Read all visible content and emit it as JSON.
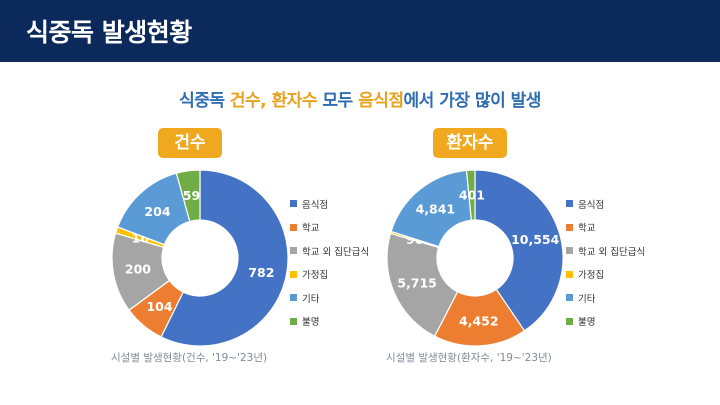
{
  "header": {
    "title": "식중독 발생현황"
  },
  "subtitle": {
    "p1": "식중독 ",
    "h1": "건수, 환자수",
    "p2": " 모두 ",
    "h2": "음식점",
    "p3": "에서 가장 많이 발생"
  },
  "legend": [
    {
      "label": "음식점",
      "color": "#4472c4"
    },
    {
      "label": "학교",
      "color": "#ed7d31"
    },
    {
      "label": "학교 외 집단급식",
      "color": "#a5a5a5"
    },
    {
      "label": "가정집",
      "color": "#ffc000"
    },
    {
      "label": "기타",
      "color": "#5b9bd5"
    },
    {
      "label": "불명",
      "color": "#70ad47"
    }
  ],
  "chart_data": [
    {
      "type": "pie",
      "title": "건수",
      "caption": "시설별 발생현황(건수, '19~'23년)",
      "categories": [
        "음식점",
        "학교",
        "학교 외 집단급식",
        "가정집",
        "기타",
        "불명"
      ],
      "values": [
        782,
        104,
        200,
        16,
        204,
        59
      ],
      "labels": [
        "782",
        "104",
        "200",
        "16",
        "204",
        "59"
      ],
      "donut": true
    },
    {
      "type": "pie",
      "title": "환자수",
      "caption": "시설별 발생현황(환자수, '19~'23년)",
      "categories": [
        "음식점",
        "학교",
        "학교 외 집단급식",
        "가정집",
        "기타",
        "불명"
      ],
      "values": [
        10554,
        4452,
        5715,
        96,
        4841,
        401
      ],
      "labels": [
        "10,554",
        "4,452",
        "5,715",
        "96",
        "4,841",
        "401"
      ],
      "donut": true
    }
  ]
}
